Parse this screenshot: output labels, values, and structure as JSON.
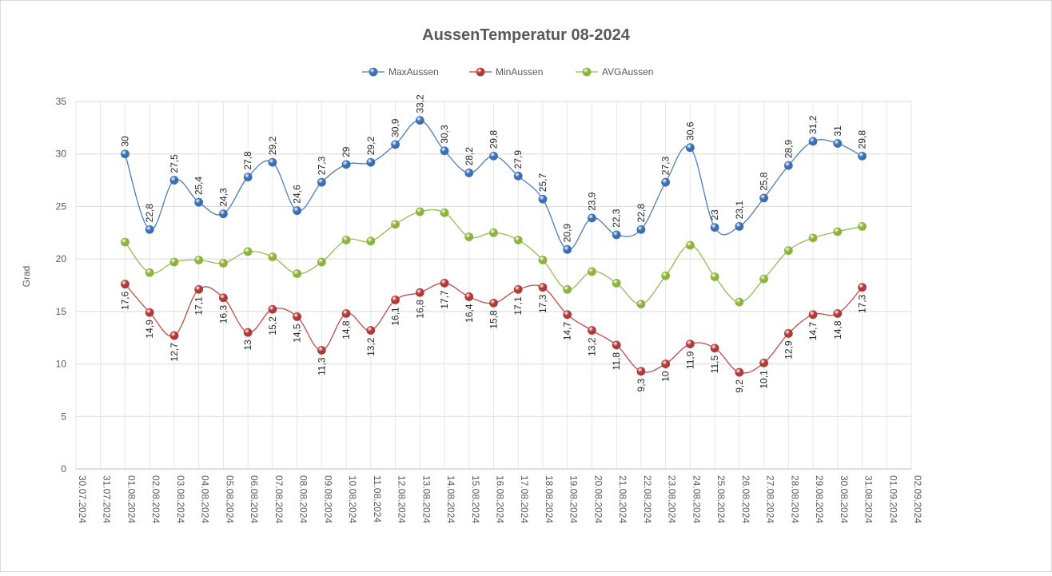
{
  "chart_data": {
    "type": "line",
    "title": "AussenTemperatur 08-2024",
    "ylabel": "Grad",
    "xlabel": "",
    "ylim": [
      0,
      35
    ],
    "yticks": [
      0,
      5,
      10,
      15,
      20,
      25,
      30,
      35
    ],
    "legend_position": "top-center",
    "grid": true,
    "axis_dates": [
      "30.07.2024",
      "31.07.2024",
      "01.08.2024",
      "02.08.2024",
      "03.08.2024",
      "04.08.2024",
      "05.08.2024",
      "06.08.2024",
      "07.08.2024",
      "08.08.2024",
      "09.08.2024",
      "10.08.2024",
      "11.08.2024",
      "12.08.2024",
      "13.08.2024",
      "14.08.2024",
      "15.08.2024",
      "16.08.2024",
      "17.08.2024",
      "18.08.2024",
      "19.08.2024",
      "20.08.2024",
      "21.08.2024",
      "22.08.2024",
      "23.08.2024",
      "24.08.2024",
      "25.08.2024",
      "26.08.2024",
      "27.08.2024",
      "28.08.2024",
      "29.08.2024",
      "30.08.2024",
      "31.08.2024",
      "01.09.2024",
      "02.09.2024"
    ],
    "first_data_index": 2,
    "series": [
      {
        "name": "MaxAussen",
        "color": "#4a7ebb",
        "marker": "#3a6fb5",
        "label_position": "above",
        "values": [
          30,
          22.8,
          27.5,
          25.4,
          24.3,
          27.8,
          29.2,
          24.6,
          27.3,
          29,
          29.2,
          30.9,
          33.2,
          30.3,
          28.2,
          29.8,
          27.9,
          25.7,
          20.9,
          23.9,
          22.3,
          22.8,
          27.3,
          30.6,
          23,
          23.1,
          25.8,
          28.9,
          31.2,
          31,
          29.8
        ],
        "labels": [
          "30",
          "22,8",
          "27,5",
          "25,4",
          "24,3",
          "27,8",
          "29,2",
          "24,6",
          "27,3",
          "29",
          "29,2",
          "30,9",
          "33,2",
          "30,3",
          "28,2",
          "29,8",
          "27,9",
          "25,7",
          "20,9",
          "23,9",
          "22,3",
          "22,8",
          "27,3",
          "30,6",
          "23",
          "23,1",
          "25,8",
          "28,9",
          "31,2",
          "31",
          "29,8"
        ]
      },
      {
        "name": "MinAussen",
        "color": "#be4b48",
        "marker": "#b03a37",
        "label_position": "below",
        "values": [
          17.6,
          14.9,
          12.7,
          17.1,
          16.3,
          13,
          15.2,
          14.5,
          11.3,
          14.8,
          13.2,
          16.1,
          16.8,
          17.7,
          16.4,
          15.8,
          17.1,
          17.3,
          14.7,
          13.2,
          11.8,
          9.3,
          10,
          11.9,
          11.5,
          9.2,
          10.1,
          12.9,
          14.7,
          14.8,
          17.3
        ],
        "labels": [
          "17,6",
          "14,9",
          "12,7",
          "17,1",
          "16,3",
          "13",
          "15,2",
          "14,5",
          "11,3",
          "14,8",
          "13,2",
          "16,1",
          "16,8",
          "17,7",
          "16,4",
          "15,8",
          "17,1",
          "17,3",
          "14,7",
          "13,2",
          "11,8",
          "9,3",
          "10",
          "11,9",
          "11,5",
          "9,2",
          "10,1",
          "12,9",
          "14,7",
          "14,8",
          "17,3"
        ]
      },
      {
        "name": "AVGAussen",
        "color": "#98b954",
        "marker": "#8db33c",
        "label_position": "none",
        "values": [
          21.6,
          18.7,
          19.7,
          19.9,
          19.6,
          20.7,
          20.2,
          18.6,
          19.7,
          21.8,
          21.7,
          23.3,
          24.5,
          24.4,
          22.1,
          22.5,
          21.8,
          19.9,
          17.1,
          18.8,
          17.7,
          15.7,
          18.4,
          21.3,
          18.3,
          15.9,
          18.1,
          20.8,
          22.0,
          22.6,
          23.1
        ]
      }
    ]
  }
}
